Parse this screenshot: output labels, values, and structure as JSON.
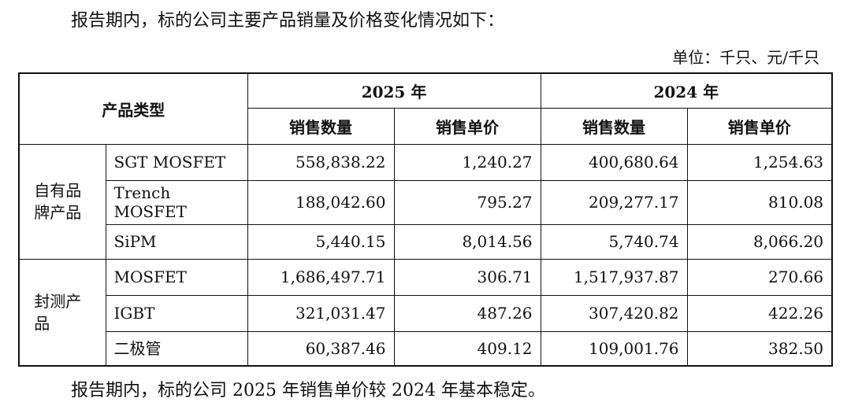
{
  "intro": "报告期内，标的公司主要产品销量及价格变化情况如下：",
  "unit": "单位：千只、元/千只",
  "table": {
    "product_type_header": "产品类型",
    "years": [
      "2025 年",
      "2024 年"
    ],
    "sub_headers": [
      "销售数量",
      "销售单价",
      "销售数量",
      "销售单价"
    ],
    "groups": [
      {
        "name": "自有品牌产品",
        "rows": [
          {
            "product": "SGT MOSFET",
            "v2025_qty": "558,838.22",
            "v2025_price": "1,240.27",
            "v2024_qty": "400,680.64",
            "v2024_price": "1,254.63"
          },
          {
            "product": "Trench MOSFET",
            "v2025_qty": "188,042.60",
            "v2025_price": "795.27",
            "v2024_qty": "209,277.17",
            "v2024_price": "810.08"
          },
          {
            "product": "SiPM",
            "v2025_qty": "5,440.15",
            "v2025_price": "8,014.56",
            "v2024_qty": "5,740.74",
            "v2024_price": "8,066.20"
          }
        ]
      },
      {
        "name": "封测产品",
        "rows": [
          {
            "product": "MOSFET",
            "v2025_qty": "1,686,497.71",
            "v2025_price": "306.71",
            "v2024_qty": "1,517,937.87",
            "v2024_price": "270.66"
          },
          {
            "product": "IGBT",
            "v2025_qty": "321,031.47",
            "v2025_price": "487.26",
            "v2024_qty": "307,420.82",
            "v2024_price": "422.26"
          },
          {
            "product": "二极管",
            "v2025_qty": "60,387.46",
            "v2025_price": "409.12",
            "v2024_qty": "109,001.76",
            "v2024_price": "382.50"
          }
        ]
      }
    ]
  },
  "summary": "报告期内，标的公司 2025 年销售单价较 2024 年基本稳定。"
}
